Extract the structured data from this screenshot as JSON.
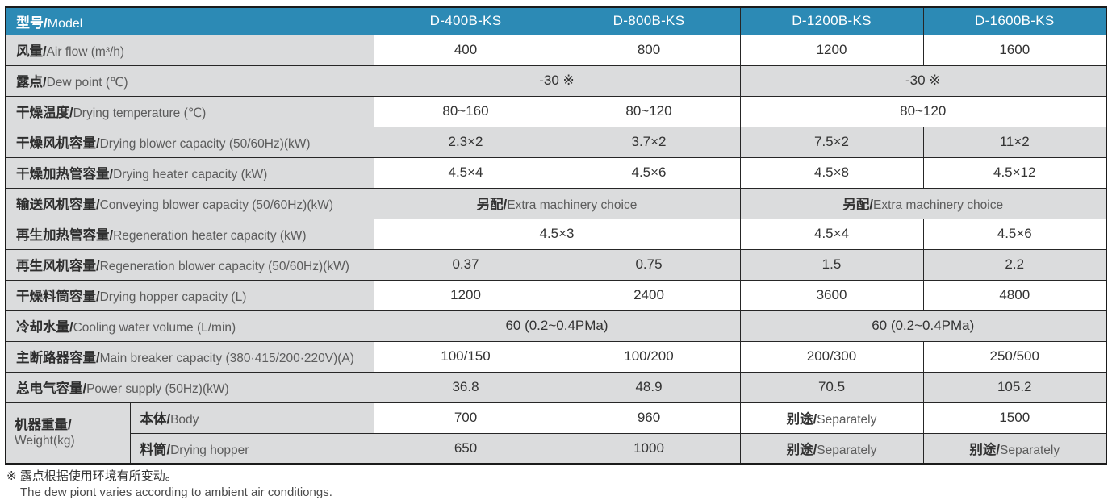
{
  "colors": {
    "header_bg": "#2C8AB5",
    "header_text": "#FFFFFF",
    "label_column_bg": "#DBDCDD",
    "row_gray": "#DBDCDD",
    "row_white": "#FFFFFF",
    "border": "#1B1B1B",
    "zh_text": "#2E2E2E",
    "en_text": "#5C5C5C"
  },
  "header": {
    "label": {
      "zh": "型号/",
      "en": "Model"
    },
    "models": [
      "D-400B-KS",
      "D-800B-KS",
      "D-1200B-KS",
      "D-1600B-KS"
    ]
  },
  "rows": [
    {
      "shade": "white",
      "label": {
        "zh": "风量/",
        "en": "Air flow (m³/h)",
        "span": 2
      },
      "cells": [
        {
          "text": "400"
        },
        {
          "text": "800"
        },
        {
          "text": "1200"
        },
        {
          "text": "1600"
        }
      ]
    },
    {
      "shade": "gray",
      "label": {
        "zh": "露点/",
        "en": "Dew point (℃)",
        "span": 2
      },
      "cells": [
        {
          "text": "-30 ※",
          "span": 2
        },
        {
          "text": "-30 ※",
          "span": 2
        }
      ]
    },
    {
      "shade": "white",
      "label": {
        "zh": "干燥温度/",
        "en": "Drying temperature (℃)",
        "span": 2
      },
      "cells": [
        {
          "text": "80~160"
        },
        {
          "text": "80~120"
        },
        {
          "text": "80~120",
          "span": 2
        }
      ]
    },
    {
      "shade": "gray",
      "label": {
        "zh": "干燥风机容量/",
        "en": "Drying blower capacity (50/60Hz)(kW)",
        "span": 2
      },
      "cells": [
        {
          "text": "2.3×2"
        },
        {
          "text": "3.7×2"
        },
        {
          "text": "7.5×2"
        },
        {
          "text": "11×2"
        }
      ]
    },
    {
      "shade": "white",
      "label": {
        "zh": "干燥加热管容量/",
        "en": "Drying heater capacity (kW)",
        "span": 2
      },
      "cells": [
        {
          "text": "4.5×4"
        },
        {
          "text": "4.5×6"
        },
        {
          "text": "4.5×8"
        },
        {
          "text": "4.5×12"
        }
      ]
    },
    {
      "shade": "gray",
      "label": {
        "zh": "输送风机容量/",
        "en": "Conveying blower capacity (50/60Hz)(kW)",
        "span": 2
      },
      "cells": [
        {
          "zh": "另配/",
          "en": "Extra machinery choice",
          "span": 2
        },
        {
          "zh": "另配/",
          "en": "Extra machinery choice",
          "span": 2
        }
      ]
    },
    {
      "shade": "white",
      "label": {
        "zh": "再生加热管容量/",
        "en": "Regeneration heater capacity (kW)",
        "span": 2
      },
      "cells": [
        {
          "text": "4.5×3",
          "span": 2
        },
        {
          "text": "4.5×4"
        },
        {
          "text": "4.5×6"
        }
      ]
    },
    {
      "shade": "gray",
      "label": {
        "zh": "再生风机容量/",
        "en": "Regeneration blower capacity (50/60Hz)(kW)",
        "span": 2
      },
      "cells": [
        {
          "text": "0.37"
        },
        {
          "text": "0.75"
        },
        {
          "text": "1.5"
        },
        {
          "text": "2.2"
        }
      ]
    },
    {
      "shade": "white",
      "label": {
        "zh": "干燥料筒容量/",
        "en": "Drying hopper capacity (L)",
        "span": 2
      },
      "cells": [
        {
          "text": "1200"
        },
        {
          "text": "2400"
        },
        {
          "text": "3600"
        },
        {
          "text": "4800"
        }
      ]
    },
    {
      "shade": "gray",
      "label": {
        "zh": "冷却水量/",
        "en": "Cooling water volume (L/min)",
        "span": 2
      },
      "cells": [
        {
          "text": "60 (0.2~0.4PMa)",
          "span": 2
        },
        {
          "text": "60 (0.2~0.4PMa)",
          "span": 2
        }
      ]
    },
    {
      "shade": "white",
      "label": {
        "zh": "主断路器容量/",
        "en": "Main breaker capacity (380·415/200·220V)(A)",
        "span": 2
      },
      "cells": [
        {
          "text": "100/150"
        },
        {
          "text": "100/200"
        },
        {
          "text": "200/300"
        },
        {
          "text": "250/500"
        }
      ]
    },
    {
      "shade": "gray",
      "label": {
        "zh": "总电气容量/",
        "en": "Power supply (50Hz)(kW)",
        "span": 2
      },
      "cells": [
        {
          "text": "36.8"
        },
        {
          "text": "48.9"
        },
        {
          "text": "70.5"
        },
        {
          "text": "105.2"
        }
      ]
    },
    {
      "shade": "white",
      "group": {
        "zh": "机器重量/",
        "en": "Weight(kg)",
        "rowspan": 2
      },
      "label": {
        "zh": "本体/",
        "en": "Body",
        "span": 1
      },
      "cells": [
        {
          "text": "700"
        },
        {
          "text": "960"
        },
        {
          "zh": "别途/",
          "en": "Separately"
        },
        {
          "text": "1500"
        }
      ]
    },
    {
      "shade": "gray",
      "label": {
        "zh": "料筒/",
        "en": "Drying hopper",
        "span": 1
      },
      "cells": [
        {
          "text": "650"
        },
        {
          "text": "1000"
        },
        {
          "zh": "别途/",
          "en": "Separately"
        },
        {
          "zh": "别途/",
          "en": "Separately"
        }
      ]
    }
  ],
  "footnote": {
    "zh": "※ 露点根据使用环境有所变动。",
    "en": "The dew piont varies according to ambient air conditiongs."
  }
}
